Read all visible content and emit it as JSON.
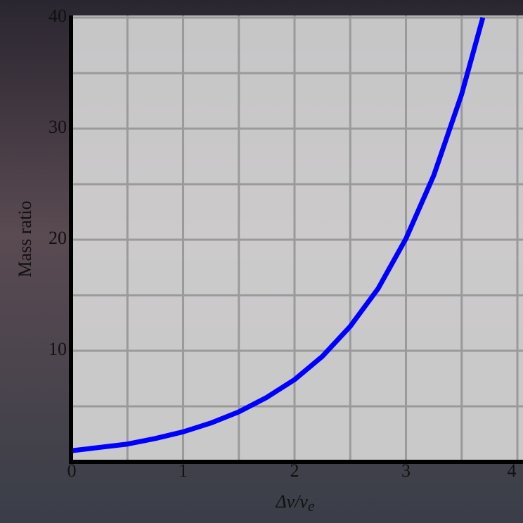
{
  "chart_data": {
    "type": "line",
    "y_label": "Mass ratio",
    "x_label": {
      "main": "Δv/v",
      "sub": "e"
    },
    "x": [
      0,
      0.25,
      0.5,
      0.75,
      1,
      1.25,
      1.5,
      1.75,
      2,
      2.25,
      2.5,
      2.75,
      3,
      3.25,
      3.5,
      3.69
    ],
    "series": [
      {
        "color": "#0000ff",
        "values": [
          1,
          1.3,
          1.6,
          2.1,
          2.7,
          3.5,
          4.5,
          5.8,
          7.4,
          9.5,
          12.2,
          15.6,
          20.1,
          25.8,
          33.1,
          40
        ]
      }
    ],
    "xlim": [
      0,
      4
    ],
    "ylim": [
      0,
      40
    ],
    "xticks": [
      0,
      1,
      2,
      3,
      4
    ],
    "yticks": [
      10,
      20,
      30,
      40
    ],
    "x_grid": [
      0.5,
      1,
      1.5,
      2,
      2.5,
      3,
      3.5,
      4
    ],
    "y_grid": [
      5,
      10,
      15,
      20,
      25,
      30,
      35,
      40
    ],
    "grid": true
  }
}
